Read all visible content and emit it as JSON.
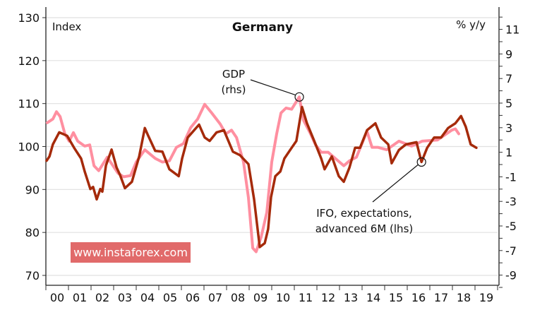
{
  "chart_data": {
    "type": "line",
    "title": "Germany",
    "left_axis_label": "Index",
    "right_axis_label": "% y/y",
    "ylim_left": [
      70,
      130
    ],
    "yticks_left": [
      70,
      80,
      90,
      100,
      110,
      120,
      130
    ],
    "ylim_right": [
      -10.2,
      12.8
    ],
    "yticks_right": [
      -9,
      -7,
      -5,
      -3,
      -1,
      1,
      3,
      5,
      7,
      9,
      11
    ],
    "xlim": [
      2000,
      2020
    ],
    "xtick_labels": [
      "00",
      "01",
      "02",
      "03",
      "04",
      "05",
      "06",
      "07",
      "08",
      "09",
      "10",
      "11",
      "12",
      "13",
      "14",
      "15",
      "16",
      "17",
      "18",
      "19"
    ],
    "grid": "horizontal (left axis)",
    "series": [
      {
        "name": "IFO, expectations, advanced 6M (lhs)",
        "axis": "left",
        "color": "#a52a0a",
        "points": [
          [
            2000.03,
            96.7
          ],
          [
            2000.16,
            97.7
          ],
          [
            2000.31,
            100.5
          ],
          [
            2000.59,
            103.3
          ],
          [
            2000.94,
            102.5
          ],
          [
            2001.25,
            99.7
          ],
          [
            2001.56,
            97.2
          ],
          [
            2001.72,
            94.2
          ],
          [
            2001.97,
            90.1
          ],
          [
            2002.09,
            90.6
          ],
          [
            2002.25,
            87.7
          ],
          [
            2002.41,
            90.1
          ],
          [
            2002.5,
            89.5
          ],
          [
            2002.66,
            95.6
          ],
          [
            2002.91,
            99.3
          ],
          [
            2003.13,
            95.1
          ],
          [
            2003.28,
            93.4
          ],
          [
            2003.5,
            90.3
          ],
          [
            2003.81,
            91.8
          ],
          [
            2004.13,
            97.7
          ],
          [
            2004.38,
            104.3
          ],
          [
            2004.53,
            102.5
          ],
          [
            2004.84,
            99.0
          ],
          [
            2005.16,
            98.8
          ],
          [
            2005.47,
            94.7
          ],
          [
            2005.88,
            93.1
          ],
          [
            2006.03,
            97.2
          ],
          [
            2006.28,
            102.1
          ],
          [
            2006.78,
            105.1
          ],
          [
            2007.03,
            102.1
          ],
          [
            2007.25,
            101.3
          ],
          [
            2007.56,
            103.3
          ],
          [
            2007.88,
            103.8
          ],
          [
            2008.28,
            98.8
          ],
          [
            2008.59,
            98.0
          ],
          [
            2008.97,
            95.9
          ],
          [
            2009.22,
            87.7
          ],
          [
            2009.47,
            76.6
          ],
          [
            2009.69,
            77.5
          ],
          [
            2009.84,
            80.8
          ],
          [
            2009.97,
            88.2
          ],
          [
            2010.16,
            93.1
          ],
          [
            2010.38,
            94.2
          ],
          [
            2010.56,
            97.2
          ],
          [
            2010.88,
            99.7
          ],
          [
            2011.09,
            101.3
          ],
          [
            2011.34,
            109.2
          ],
          [
            2011.56,
            105.4
          ],
          [
            2011.88,
            101.3
          ],
          [
            2012.19,
            97.2
          ],
          [
            2012.34,
            94.7
          ],
          [
            2012.66,
            97.7
          ],
          [
            2012.97,
            93.1
          ],
          [
            2013.19,
            91.8
          ],
          [
            2013.44,
            95.1
          ],
          [
            2013.69,
            99.7
          ],
          [
            2013.91,
            99.7
          ],
          [
            2014.22,
            103.8
          ],
          [
            2014.59,
            105.4
          ],
          [
            2014.84,
            102.1
          ],
          [
            2015.16,
            100.5
          ],
          [
            2015.31,
            96.1
          ],
          [
            2015.63,
            99.2
          ],
          [
            2015.94,
            100.5
          ],
          [
            2016.41,
            101.0
          ],
          [
            2016.63,
            96.4
          ],
          [
            2016.88,
            99.7
          ],
          [
            2017.19,
            102.1
          ],
          [
            2017.5,
            102.1
          ],
          [
            2017.81,
            104.3
          ],
          [
            2018.13,
            105.4
          ],
          [
            2018.38,
            107.1
          ],
          [
            2018.59,
            104.6
          ],
          [
            2018.81,
            100.5
          ],
          [
            2019.06,
            99.7
          ]
        ]
      },
      {
        "name": "GDP (rhs)",
        "axis": "right",
        "color": "#ff8fa0",
        "points": [
          [
            2000.06,
            3.4
          ],
          [
            2000.31,
            3.7
          ],
          [
            2000.47,
            4.3
          ],
          [
            2000.63,
            3.9
          ],
          [
            2000.84,
            2.5
          ],
          [
            2001.03,
            1.9
          ],
          [
            2001.22,
            2.6
          ],
          [
            2001.41,
            1.9
          ],
          [
            2001.72,
            1.5
          ],
          [
            2001.94,
            1.6
          ],
          [
            2002.13,
            -0.1
          ],
          [
            2002.34,
            -0.5
          ],
          [
            2002.72,
            0.6
          ],
          [
            2003.19,
            -0.7
          ],
          [
            2003.44,
            -1.0
          ],
          [
            2003.75,
            -0.9
          ],
          [
            2004.0,
            0.2
          ],
          [
            2004.38,
            1.2
          ],
          [
            2004.84,
            0.5
          ],
          [
            2005.16,
            0.2
          ],
          [
            2005.47,
            0.3
          ],
          [
            2005.78,
            1.4
          ],
          [
            2006.09,
            1.7
          ],
          [
            2006.41,
            3.0
          ],
          [
            2006.72,
            3.7
          ],
          [
            2007.03,
            4.9
          ],
          [
            2007.34,
            4.2
          ],
          [
            2007.72,
            3.3
          ],
          [
            2007.97,
            2.5
          ],
          [
            2008.22,
            2.8
          ],
          [
            2008.44,
            2.2
          ],
          [
            2008.75,
            0.2
          ],
          [
            2008.97,
            -2.7
          ],
          [
            2009.16,
            -6.8
          ],
          [
            2009.31,
            -7.1
          ],
          [
            2009.53,
            -5.9
          ],
          [
            2009.78,
            -3.9
          ],
          [
            2010.0,
            0.2
          ],
          [
            2010.22,
            2.5
          ],
          [
            2010.41,
            4.2
          ],
          [
            2010.63,
            4.6
          ],
          [
            2010.88,
            4.5
          ],
          [
            2011.22,
            5.5
          ],
          [
            2011.41,
            3.6
          ],
          [
            2011.72,
            2.5
          ],
          [
            2011.94,
            1.6
          ],
          [
            2012.19,
            1.0
          ],
          [
            2012.5,
            1.0
          ],
          [
            2012.81,
            0.5
          ],
          [
            2013.19,
            -0.1
          ],
          [
            2013.44,
            0.3
          ],
          [
            2013.75,
            0.6
          ],
          [
            2014.22,
            2.7
          ],
          [
            2014.44,
            1.4
          ],
          [
            2014.69,
            1.4
          ],
          [
            2015.09,
            1.2
          ],
          [
            2015.63,
            1.9
          ],
          [
            2016.19,
            1.5
          ],
          [
            2016.66,
            1.9
          ],
          [
            2017.34,
            2.0
          ],
          [
            2017.97,
            2.8
          ],
          [
            2018.13,
            2.9
          ],
          [
            2018.28,
            2.5
          ]
        ]
      }
    ],
    "annotations": [
      {
        "lines": [
          "GDP",
          "(rhs)"
        ],
        "target_series": "GDP (rhs)",
        "target": [
          2011.22,
          5.5
        ]
      },
      {
        "lines": [
          "IFO, expectations,",
          "advanced 6M (lhs)"
        ],
        "target_series": "IFO, expectations, advanced 6M (lhs)",
        "target": [
          2016.63,
          96.4
        ]
      }
    ]
  },
  "watermark": "www.instaforex.com"
}
